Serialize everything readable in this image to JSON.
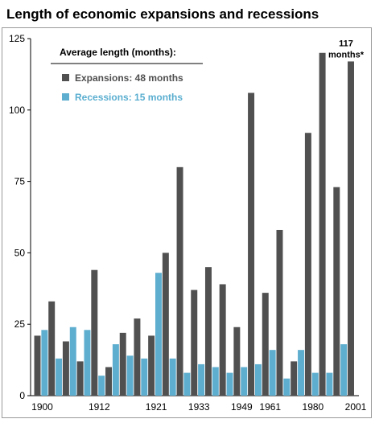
{
  "chart_data": {
    "type": "bar",
    "title": "Length of economic expansions and recessions",
    "xlabel": "",
    "ylabel": "",
    "ylim": [
      0,
      125
    ],
    "yticks": [
      0,
      25,
      50,
      75,
      100,
      125
    ],
    "x_tick_labels": [
      "1900",
      "1912",
      "1921",
      "1933",
      "1949",
      "1961",
      "1980",
      "2001"
    ],
    "grid": false,
    "legend": {
      "placement": "top-left",
      "title": "Average length (months):",
      "entries": [
        "Expansions: 48 months",
        "Recessions: 15 months"
      ]
    },
    "series": [
      {
        "key": "expansions",
        "color": "#505050",
        "values": [
          21,
          33,
          19,
          12,
          44,
          10,
          22,
          27,
          21,
          50,
          80,
          37,
          45,
          39,
          24,
          106,
          36,
          58,
          12,
          92,
          120,
          73,
          117
        ]
      },
      {
        "key": "recessions",
        "color": "#5eaecf",
        "values": [
          23,
          13,
          24,
          23,
          7,
          18,
          14,
          13,
          43,
          13,
          8,
          11,
          10,
          8,
          10,
          11,
          16,
          6,
          16,
          8,
          8,
          18
        ]
      }
    ],
    "annotation": {
      "line1": "117",
      "line2": "months*",
      "series": "expansions",
      "index": 22
    }
  }
}
